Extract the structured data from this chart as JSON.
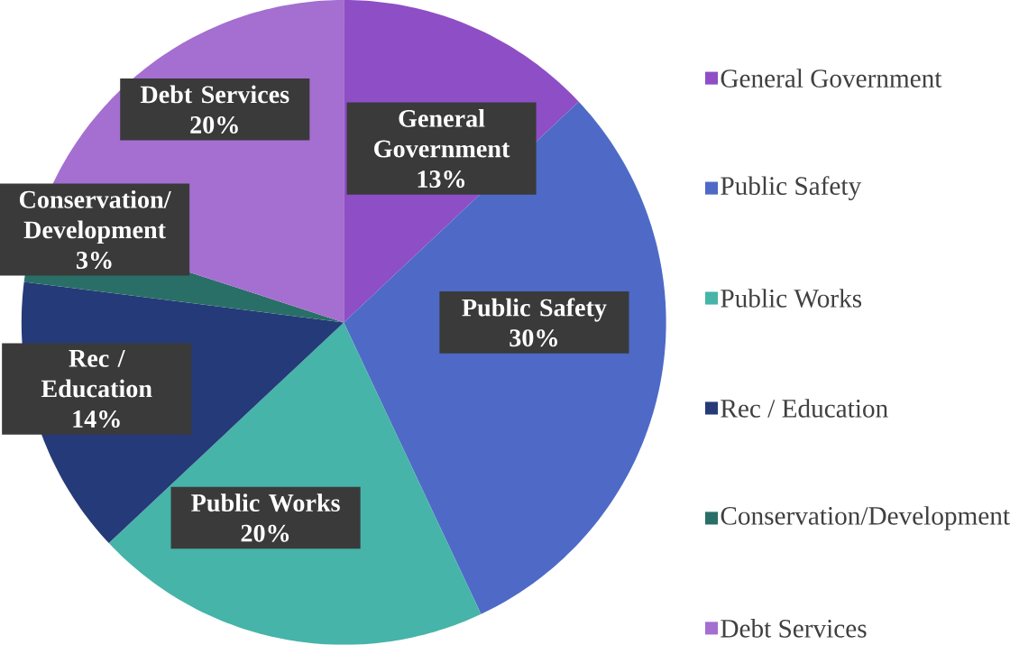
{
  "chart_data": {
    "type": "pie",
    "categories": [
      "General Government",
      "Public Safety",
      "Public Works",
      "Rec / Education",
      "Conservation/Development",
      "Debt Services"
    ],
    "values": [
      13,
      30,
      20,
      14,
      3,
      20
    ],
    "value_labels": [
      "13%",
      "30%",
      "20%",
      "14%",
      "3%",
      "20%"
    ],
    "colors": [
      "#8e4ec6",
      "#4e6ac6",
      "#46b4a8",
      "#253a78",
      "#2a6e68",
      "#a46fd0"
    ],
    "legend": "right"
  }
}
